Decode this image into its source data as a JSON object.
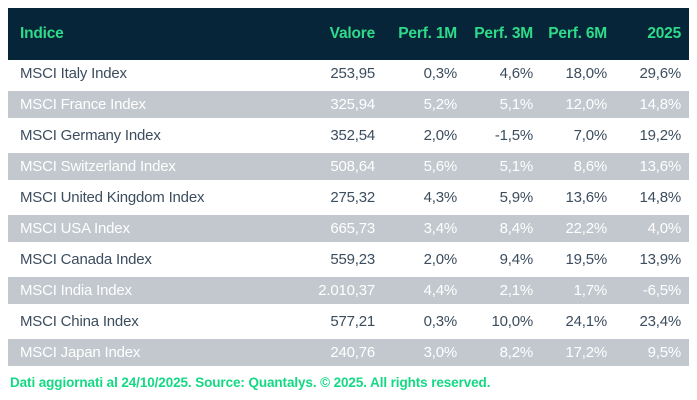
{
  "chart_data": {
    "type": "table",
    "title": "",
    "columns": [
      "Indice",
      "Valore",
      "Perf. 1M",
      "Perf. 3M",
      "Perf. 6M",
      "2025"
    ],
    "rows": [
      [
        "MSCI Italy Index",
        "253,95",
        "0,3%",
        "4,6%",
        "18,0%",
        "29,6%"
      ],
      [
        "MSCI France Index",
        "325,94",
        "5,2%",
        "5,1%",
        "12,0%",
        "14,8%"
      ],
      [
        "MSCI Germany Index",
        "352,54",
        "2,0%",
        "-1,5%",
        "7,0%",
        "19,2%"
      ],
      [
        "MSCI Switzerland Index",
        "508,64",
        "5,6%",
        "5,1%",
        "8,6%",
        "13,6%"
      ],
      [
        "MSCI United Kingdom Index",
        "275,32",
        "4,3%",
        "5,9%",
        "13,6%",
        "14,8%"
      ],
      [
        "MSCI USA Index",
        "665,73",
        "3,4%",
        "8,4%",
        "22,2%",
        "4,0%"
      ],
      [
        "MSCI Canada Index",
        "559,23",
        "2,0%",
        "9,4%",
        "19,5%",
        "13,9%"
      ],
      [
        "MSCI India Index",
        "2.010,37",
        "4,4%",
        "2,1%",
        "1,7%",
        "-6,5%"
      ],
      [
        "MSCI China Index",
        "577,21",
        "0,3%",
        "10,0%",
        "24,1%",
        "23,4%"
      ],
      [
        "MSCI Japan Index",
        "240,76",
        "3,0%",
        "8,2%",
        "17,2%",
        "9,5%"
      ]
    ]
  },
  "footer": {
    "text": "Dati aggiornati al 24/10/2025. Source: Quantalys. © 2025. All rights reserved."
  },
  "colors": {
    "header_bg": "#062538",
    "accent_green": "#2fdb8a",
    "footer_green": "#13d984",
    "row_alt_bg": "#c2c8ce",
    "row_text": "#3c4d5e",
    "row_alt_text": "#ffffff"
  }
}
